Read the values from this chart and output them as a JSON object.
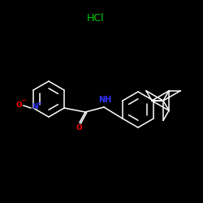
{
  "background_color": "#000000",
  "bond_color": "#ffffff",
  "nh_color": "#3333ff",
  "o_color": "#ff0000",
  "n_plus_color": "#3333ff",
  "hcl_color": "#00cc00",
  "figsize": [
    2.5,
    2.5
  ],
  "dpi": 100,
  "hcl_text": "HCl",
  "nh_text": "NH",
  "n_text": "N",
  "o_text": "O"
}
